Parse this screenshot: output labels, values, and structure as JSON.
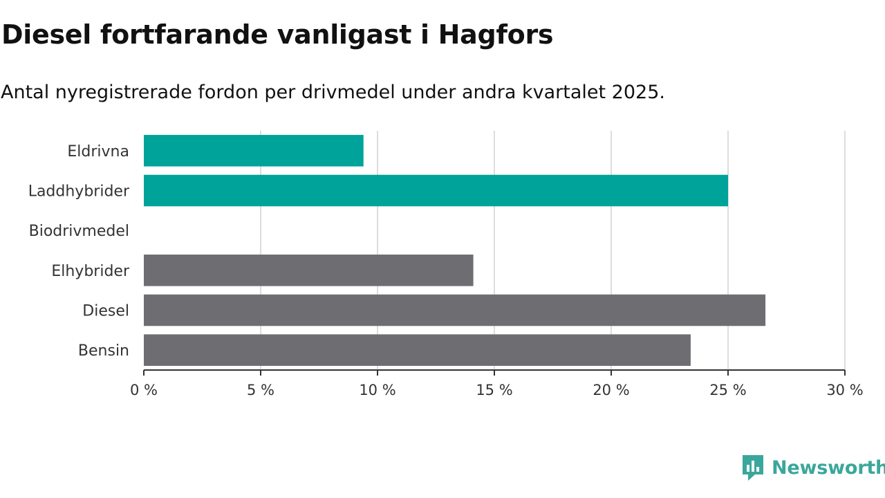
{
  "title": "Diesel fortfarande vanligast i Hagfors",
  "subtitle": "Antal nyregistrerade fordon per drivmedel under andra kvartalet 2025.",
  "brand": "Newsworthy",
  "colors": {
    "highlight": "#00a39a",
    "base": "#6e6d72",
    "grid": "#dddddd",
    "brand": "#3aa79c"
  },
  "chart_data": {
    "type": "bar",
    "orientation": "horizontal",
    "categories": [
      "Eldrivna",
      "Laddhybrider",
      "Biodrivmedel",
      "Elhybrider",
      "Diesel",
      "Bensin"
    ],
    "values": [
      9.4,
      25.0,
      0,
      14.1,
      26.6,
      23.4
    ],
    "highlight": [
      true,
      true,
      true,
      false,
      false,
      false
    ],
    "xlim": [
      0,
      30
    ],
    "xticks": [
      0,
      5,
      10,
      15,
      20,
      25,
      30
    ],
    "xtick_labels": [
      "0 %",
      "5 %",
      "10 %",
      "15 %",
      "20 %",
      "25 %",
      "30 %"
    ],
    "grid": true
  }
}
